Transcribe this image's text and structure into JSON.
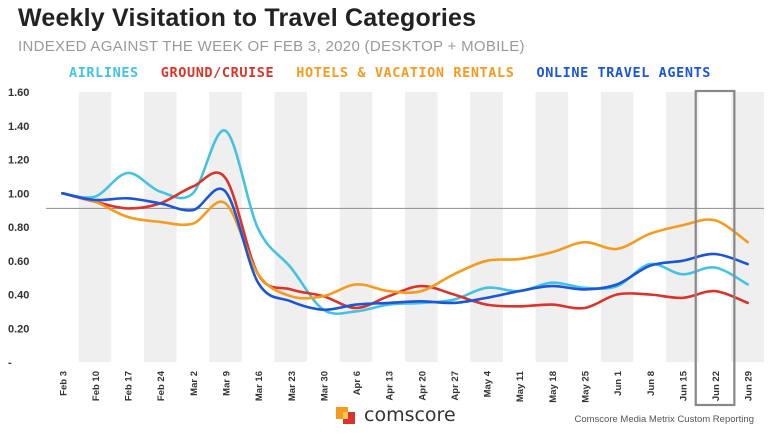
{
  "chart_data": {
    "type": "line",
    "title": "Weekly Visitation to Travel Categories",
    "subtitle": "INDEXED AGAINST THE WEEK OF FEB 3, 2020 (DESKTOP + MOBILE)",
    "categories": [
      "Feb 3",
      "Feb 10",
      "Feb 17",
      "Feb 24",
      "Mar 2",
      "Mar 9",
      "Mar 16",
      "Mar 23",
      "Mar 30",
      "Apr 6",
      "Apr 13",
      "Apr 20",
      "Apr 27",
      "May 4",
      "May 11",
      "May 18",
      "May 25",
      "Jun 1",
      "Jun 8",
      "Jun 15",
      "Jun 22",
      "Jun 29"
    ],
    "y_ticks": [
      "1.60",
      "1.40",
      "1.20",
      "1.00",
      "0.80",
      "0.60",
      "0.40",
      "0.20",
      "-"
    ],
    "ylim": [
      0,
      1.6
    ],
    "reference_line": 0.91,
    "highlight_category": "Jun 22",
    "series": [
      {
        "name": "AIRLINES",
        "color": "#45c2e3",
        "values": [
          1.0,
          0.98,
          1.12,
          1.01,
          1.0,
          1.37,
          0.79,
          0.56,
          0.31,
          0.3,
          0.34,
          0.35,
          0.37,
          0.44,
          0.42,
          0.47,
          0.44,
          0.45,
          0.58,
          0.52,
          0.56,
          0.46
        ]
      },
      {
        "name": "GROUND/CRUISE",
        "color": "#d8342b",
        "values": [
          1.0,
          0.95,
          0.91,
          0.94,
          1.04,
          1.09,
          0.52,
          0.43,
          0.39,
          0.32,
          0.39,
          0.45,
          0.4,
          0.34,
          0.33,
          0.34,
          0.32,
          0.4,
          0.4,
          0.38,
          0.42,
          0.35
        ]
      },
      {
        "name": "HOTELS & VACATION RENTALS",
        "color": "#f59b1f",
        "values": [
          1.0,
          0.95,
          0.86,
          0.83,
          0.82,
          0.94,
          0.52,
          0.39,
          0.39,
          0.46,
          0.42,
          0.42,
          0.52,
          0.6,
          0.61,
          0.65,
          0.71,
          0.67,
          0.76,
          0.81,
          0.84,
          0.71
        ]
      },
      {
        "name": "ONLINE TRAVEL AGENTS",
        "color": "#1a56d6",
        "values": [
          1.0,
          0.96,
          0.97,
          0.94,
          0.9,
          1.01,
          0.47,
          0.36,
          0.31,
          0.34,
          0.35,
          0.36,
          0.35,
          0.38,
          0.42,
          0.45,
          0.43,
          0.46,
          0.57,
          0.6,
          0.64,
          0.58
        ]
      }
    ]
  },
  "footer": {
    "brand": "comscore",
    "source": "Comscore Media Metrix Custom Reporting"
  }
}
